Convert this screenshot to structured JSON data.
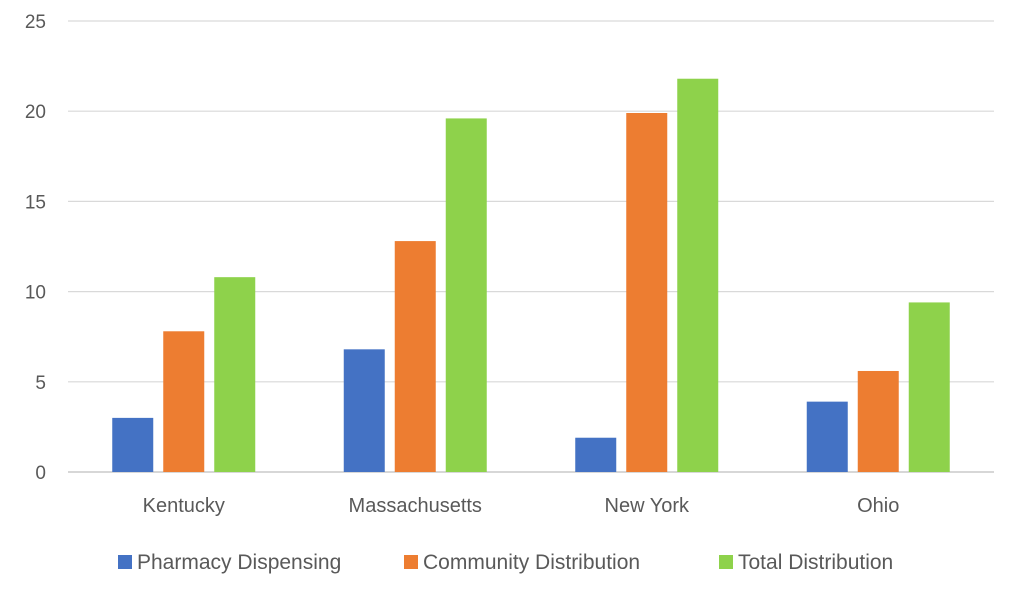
{
  "chart_data": {
    "type": "bar",
    "categories": [
      "Kentucky",
      "Massachusetts",
      "New York",
      "Ohio"
    ],
    "series": [
      {
        "name": "Pharmacy Dispensing",
        "color": "#4472C4",
        "values": [
          3.0,
          6.8,
          1.9,
          3.9
        ]
      },
      {
        "name": "Community Distribution",
        "color": "#ED7D31",
        "values": [
          7.8,
          12.8,
          19.9,
          5.6
        ]
      },
      {
        "name": "Total Distribution",
        "color": "#8ED24B",
        "values": [
          10.8,
          19.6,
          21.8,
          9.4
        ]
      }
    ],
    "yticks": [
      0,
      5,
      10,
      15,
      20,
      25
    ],
    "ylim": [
      0,
      25
    ],
    "grid": true,
    "legend_position": "bottom",
    "title": "",
    "xlabel": "",
    "ylabel": ""
  }
}
